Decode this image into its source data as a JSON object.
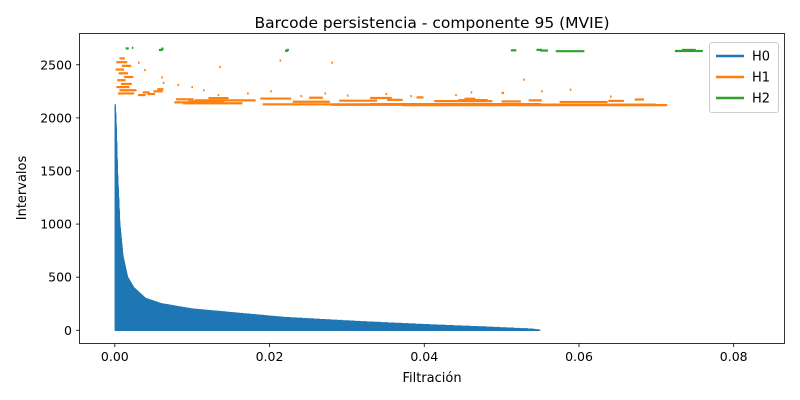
{
  "chart_data": {
    "type": "barcode",
    "title": "Barcode persistencia - componente 95 (MVIE)",
    "xlabel": "Filtración",
    "ylabel": "Intervalos",
    "xlim": [
      -0.0045,
      0.0865
    ],
    "ylim": [
      -120,
      2790
    ],
    "x_ticks": [
      0.0,
      0.02,
      0.04,
      0.06,
      0.08
    ],
    "x_tick_labels": [
      "0.00",
      "0.02",
      "0.04",
      "0.06",
      "0.08"
    ],
    "y_ticks": [
      0,
      500,
      1000,
      1500,
      2000,
      2500
    ],
    "y_tick_labels": [
      "0",
      "500",
      "1000",
      "1500",
      "2000",
      "2500"
    ],
    "grid": false,
    "legend_position": "top-right",
    "series": [
      {
        "name": "H0",
        "color": "#1f77b4",
        "bar_count": 2125,
        "death_profile": [
          [
            0,
            0.055
          ],
          [
            10,
            0.054
          ],
          [
            30,
            0.048
          ],
          [
            50,
            0.041
          ],
          [
            80,
            0.032
          ],
          [
            120,
            0.022
          ],
          [
            160,
            0.016
          ],
          [
            200,
            0.01
          ],
          [
            250,
            0.006
          ],
          [
            300,
            0.004
          ],
          [
            400,
            0.0025
          ],
          [
            500,
            0.0017
          ],
          [
            700,
            0.0011
          ],
          [
            1000,
            0.0007
          ],
          [
            1500,
            0.0004
          ],
          [
            2000,
            0.0002
          ],
          [
            2125,
            0.0001
          ]
        ]
      },
      {
        "name": "H1",
        "color": "#ff7f0e",
        "segments": [
          [
            0.0371,
            0.0714,
            2120
          ],
          [
            0.0371,
            0.0699,
            2125
          ],
          [
            0.033,
            0.0551,
            2130
          ],
          [
            0.028,
            0.0371,
            2123
          ],
          [
            0.0191,
            0.033,
            2128
          ],
          [
            0.0088,
            0.0165,
            2138
          ],
          [
            0.0077,
            0.0141,
            2146
          ],
          [
            0.0095,
            0.0117,
            2155
          ],
          [
            0.0103,
            0.0182,
            2165
          ],
          [
            0.0079,
            0.0102,
            2175
          ],
          [
            0.0121,
            0.0147,
            2186
          ],
          [
            0.023,
            0.0278,
            2152
          ],
          [
            0.029,
            0.0339,
            2162
          ],
          [
            0.0352,
            0.0372,
            2170
          ],
          [
            0.0413,
            0.0488,
            2158
          ],
          [
            0.0444,
            0.0482,
            2168
          ],
          [
            0.05,
            0.0525,
            2155
          ],
          [
            0.0535,
            0.0552,
            2165
          ],
          [
            0.0575,
            0.0637,
            2150
          ],
          [
            0.0638,
            0.0658,
            2160
          ],
          [
            0.0672,
            0.0684,
            2173
          ],
          [
            0.0188,
            0.0228,
            2182
          ],
          [
            0.0251,
            0.0269,
            2190
          ],
          [
            0.033,
            0.0358,
            2187
          ],
          [
            0.039,
            0.0399,
            2193
          ],
          [
            0.0452,
            0.0466,
            2180
          ],
          [
            0.0004,
            0.0025,
            2230
          ],
          [
            0.0006,
            0.0028,
            2260
          ],
          [
            0.0002,
            0.0019,
            2290
          ],
          [
            0.0008,
            0.0022,
            2320
          ],
          [
            0.0003,
            0.0014,
            2355
          ],
          [
            0.0012,
            0.0024,
            2385
          ],
          [
            0.0005,
            0.0017,
            2420
          ],
          [
            0.0001,
            0.0012,
            2455
          ],
          [
            0.0009,
            0.0021,
            2490
          ],
          [
            0.0002,
            0.0016,
            2525
          ],
          [
            0.0006,
            0.0013,
            2560
          ],
          [
            0.003,
            0.004,
            2215
          ],
          [
            0.0036,
            0.0045,
            2240
          ],
          [
            0.0042,
            0.0052,
            2225
          ],
          [
            0.005,
            0.0062,
            2250
          ],
          [
            0.0055,
            0.0063,
            2270
          ],
          [
            0.0062,
            0.0064,
            2330
          ],
          [
            0.006,
            0.0062,
            2380
          ],
          [
            0.0038,
            0.004,
            2450
          ],
          [
            0.003,
            0.0032,
            2520
          ],
          [
            0.0081,
            0.0083,
            2310
          ],
          [
            0.0099,
            0.0101,
            2290
          ],
          [
            0.0114,
            0.0116,
            2260
          ],
          [
            0.0133,
            0.0135,
            2215
          ],
          [
            0.0135,
            0.0137,
            2480
          ],
          [
            0.0171,
            0.0173,
            2230
          ],
          [
            0.0201,
            0.0203,
            2250
          ],
          [
            0.0213,
            0.0215,
            2540
          ],
          [
            0.024,
            0.0242,
            2205
          ],
          [
            0.0271,
            0.0273,
            2230
          ],
          [
            0.028,
            0.0282,
            2520
          ],
          [
            0.03,
            0.0302,
            2210
          ],
          [
            0.035,
            0.0352,
            2225
          ],
          [
            0.0382,
            0.0384,
            2205
          ],
          [
            0.044,
            0.0442,
            2215
          ],
          [
            0.046,
            0.0462,
            2240
          ],
          [
            0.05,
            0.0503,
            2235
          ],
          [
            0.0528,
            0.053,
            2360
          ],
          [
            0.0551,
            0.0553,
            2250
          ],
          [
            0.0588,
            0.059,
            2265
          ],
          [
            0.064,
            0.0642,
            2200
          ]
        ]
      },
      {
        "name": "H2",
        "color": "#2ca02c",
        "segments": [
          [
            0.0724,
            0.076,
            2630
          ],
          [
            0.0733,
            0.0751,
            2640
          ],
          [
            0.057,
            0.0607,
            2628
          ],
          [
            0.055,
            0.056,
            2634
          ],
          [
            0.0545,
            0.0552,
            2641
          ],
          [
            0.0512,
            0.0519,
            2636
          ],
          [
            0.0014,
            0.0018,
            2654
          ],
          [
            0.0022,
            0.0024,
            2660
          ],
          [
            0.0057,
            0.0062,
            2640
          ],
          [
            0.006,
            0.0063,
            2652
          ],
          [
            0.022,
            0.0224,
            2632
          ],
          [
            0.0222,
            0.0225,
            2640
          ]
        ]
      }
    ]
  }
}
